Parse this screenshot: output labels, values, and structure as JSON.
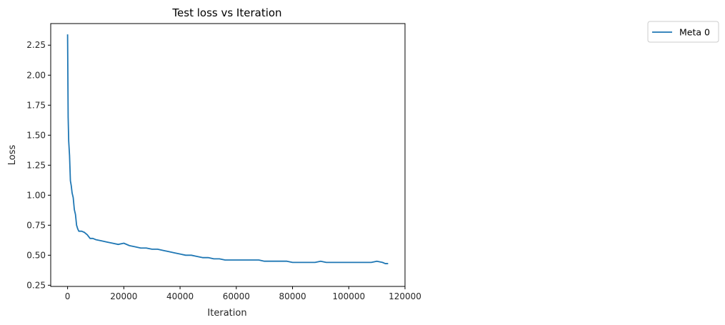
{
  "chart_data": {
    "type": "line",
    "title": "Test loss vs Iteration",
    "xlabel": "Iteration",
    "ylabel": "Loss",
    "xlim": [
      -6000,
      120000
    ],
    "ylim": [
      0.24,
      2.43
    ],
    "xticks": [
      0,
      20000,
      40000,
      60000,
      80000,
      100000,
      120000
    ],
    "yticks": [
      0.25,
      0.5,
      0.75,
      1.0,
      1.25,
      1.5,
      1.75,
      2.0,
      2.25
    ],
    "xtick_labels": [
      "0",
      "20000",
      "40000",
      "60000",
      "80000",
      "100000",
      "120000"
    ],
    "ytick_labels": [
      "0.25",
      "0.50",
      "0.75",
      "1.00",
      "1.25",
      "1.50",
      "1.75",
      "2.00",
      "2.25"
    ],
    "grid": false,
    "legend_position": "outside-top-right",
    "series": [
      {
        "name": "Meta 0",
        "color": "#1f77b4",
        "x": [
          0,
          200,
          400,
          700,
          1000,
          1300,
          1600,
          2000,
          2400,
          2800,
          3200,
          3600,
          4000,
          5000,
          6000,
          7000,
          8000,
          9000,
          10000,
          12000,
          14000,
          16000,
          18000,
          20000,
          22000,
          24000,
          26000,
          28000,
          30000,
          32000,
          34000,
          36000,
          38000,
          40000,
          42000,
          44000,
          46000,
          48000,
          50000,
          52000,
          54000,
          56000,
          58000,
          60000,
          62000,
          64000,
          66000,
          68000,
          70000,
          72000,
          74000,
          76000,
          78000,
          80000,
          82000,
          84000,
          86000,
          88000,
          90000,
          92000,
          94000,
          96000,
          98000,
          100000,
          102000,
          104000,
          106000,
          108000,
          110000,
          112000,
          113000,
          114000
        ],
        "y": [
          2.34,
          1.65,
          1.45,
          1.33,
          1.12,
          1.08,
          1.02,
          0.98,
          0.88,
          0.84,
          0.75,
          0.72,
          0.7,
          0.7,
          0.69,
          0.67,
          0.64,
          0.64,
          0.63,
          0.62,
          0.61,
          0.6,
          0.59,
          0.6,
          0.58,
          0.57,
          0.56,
          0.56,
          0.55,
          0.55,
          0.54,
          0.53,
          0.52,
          0.51,
          0.5,
          0.5,
          0.49,
          0.48,
          0.48,
          0.47,
          0.47,
          0.46,
          0.46,
          0.46,
          0.46,
          0.46,
          0.46,
          0.46,
          0.45,
          0.45,
          0.45,
          0.45,
          0.45,
          0.44,
          0.44,
          0.44,
          0.44,
          0.44,
          0.45,
          0.44,
          0.44,
          0.44,
          0.44,
          0.44,
          0.44,
          0.44,
          0.44,
          0.44,
          0.45,
          0.44,
          0.43,
          0.43
        ]
      }
    ]
  }
}
